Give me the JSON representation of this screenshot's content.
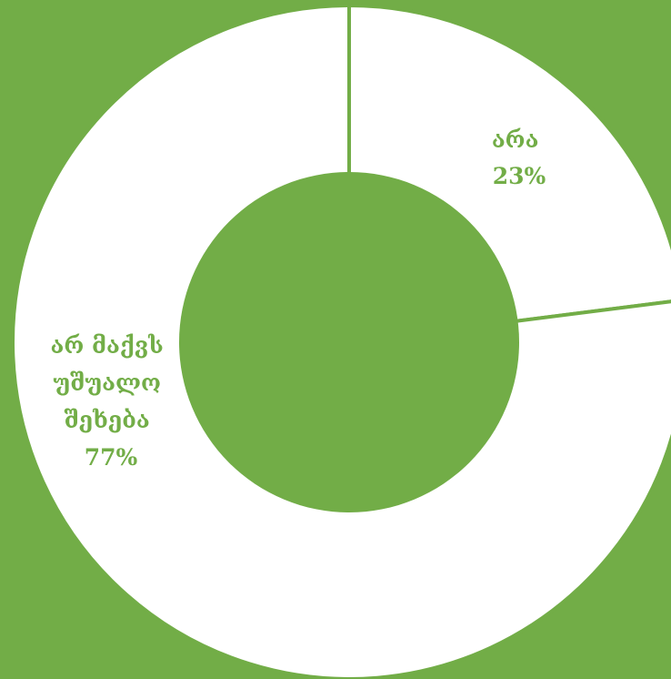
{
  "chart_data": {
    "type": "pie",
    "donut": true,
    "title": "",
    "slices": [
      {
        "name": "არა",
        "value": 23,
        "percent_label": "23%"
      },
      {
        "name": "არ მაქვს უშუალო შეხება",
        "name_lines": [
          "არ მაქვს",
          "უშუალო",
          "შეხება"
        ],
        "value": 77,
        "percent_label": "77%"
      }
    ],
    "start_angle_deg": 0,
    "direction": "clockwise",
    "legend": "none",
    "colors": {
      "background": "#72AD47",
      "slice_fill": "#FFFFFF",
      "hole": "#72AD47",
      "separator": "#72AD47",
      "label_text": "#72AD47"
    }
  }
}
